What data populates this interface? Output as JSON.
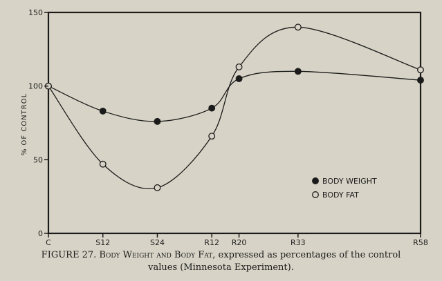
{
  "chart_data": {
    "type": "line",
    "categories": [
      "C",
      "S12",
      "S24",
      "R12",
      "R20",
      "R33",
      "R58"
    ],
    "x": [
      0,
      12,
      24,
      36,
      42,
      55,
      82
    ],
    "ylabel": "% OF CONTROL",
    "ylim": [
      0,
      150
    ],
    "yticks": [
      0,
      50,
      100,
      150
    ],
    "grid": false,
    "legend_position": "lower-right",
    "series": [
      {
        "name": "BODY WEIGHT",
        "marker": "filled",
        "values": [
          100,
          83,
          76,
          85,
          105,
          110,
          104
        ]
      },
      {
        "name": "BODY FAT",
        "marker": "open",
        "values": [
          100,
          47,
          31,
          66,
          113,
          140,
          111
        ]
      }
    ]
  },
  "caption": {
    "label": "FIGURE 27.",
    "title_part1": "Body Weight",
    "title_and": "and",
    "title_part2": "Body Fat",
    "rest_line1": ", expressed as percentages of the control",
    "line2": "values (Minnesota Experiment)."
  },
  "colors": {
    "paper": "#d7d3c6",
    "ink": "#1b1b1b"
  }
}
